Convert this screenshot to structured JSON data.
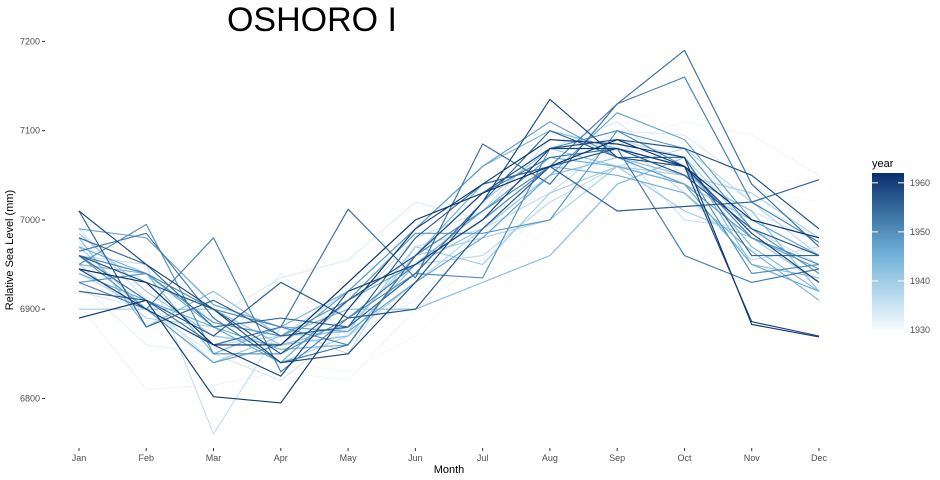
{
  "chart_data": {
    "type": "line",
    "title": "OSHORO I",
    "xlabel": "Month",
    "ylabel": "Relative Sea Level (mm)",
    "categories": [
      "Jan",
      "Feb",
      "Mar",
      "Apr",
      "May",
      "Jun",
      "Jul",
      "Aug",
      "Sep",
      "Oct",
      "Nov",
      "Dec"
    ],
    "ylim": [
      6740,
      7215
    ],
    "yticks": [
      6800,
      6900,
      7000,
      7100,
      7200
    ],
    "grid": false,
    "legend": {
      "title": "year",
      "position": "right",
      "type": "colorbar",
      "ticks": [
        1930,
        1940,
        1950,
        1960
      ],
      "range": [
        1930,
        1962
      ],
      "low_color": "#f7fbff",
      "high_color": "#08306b"
    },
    "series": [
      {
        "year": 1930,
        "values": [
          6895,
          6880,
          6850,
          6840,
          6830,
          6870,
          6940,
          6990,
          7040,
          7060,
          7035,
          7020
        ]
      },
      {
        "year": 1931,
        "values": [
          6905,
          6810,
          6815,
          6830,
          6820,
          6900,
          6955,
          7010,
          7085,
          7110,
          7095,
          7050
        ]
      },
      {
        "year": 1932,
        "values": [
          6930,
          6860,
          6850,
          6940,
          6870,
          6910,
          6980,
          7040,
          7080,
          7070,
          7020,
          6980
        ]
      },
      {
        "year": 1933,
        "values": [
          6975,
          6930,
          6890,
          6935,
          6955,
          7020,
          7000,
          7050,
          7100,
          7095,
          7040,
          6990
        ]
      },
      {
        "year": 1934,
        "values": [
          6920,
          6900,
          6850,
          6820,
          6880,
          6960,
          7030,
          7080,
          7110,
          7050,
          7010,
          6975
        ]
      },
      {
        "year": 1935,
        "values": [
          6990,
          6910,
          6840,
          6870,
          6900,
          6980,
          7010,
          7090,
          7080,
          7000,
          6990,
          6950
        ]
      },
      {
        "year": 1936,
        "values": [
          6960,
          6950,
          6760,
          6880,
          6850,
          6970,
          6990,
          7030,
          7090,
          7030,
          6955,
          6970
        ]
      },
      {
        "year": 1937,
        "values": [
          6940,
          6900,
          6860,
          6870,
          6920,
          6950,
          6960,
          7020,
          7060,
          7080,
          7020,
          6960
        ]
      },
      {
        "year": 1938,
        "values": [
          6950,
          6890,
          6880,
          6840,
          6870,
          6930,
          6990,
          7060,
          7090,
          7070,
          6990,
          6940
        ]
      },
      {
        "year": 1939,
        "values": [
          6900,
          6900,
          6860,
          6860,
          6880,
          6960,
          6980,
          7000,
          7060,
          7050,
          7030,
          6980
        ]
      },
      {
        "year": 1940,
        "values": [
          6970,
          6900,
          6840,
          6870,
          6875,
          6970,
          6950,
          7030,
          7060,
          7010,
          6980,
          6930
        ]
      },
      {
        "year": 1941,
        "values": [
          6985,
          6920,
          6870,
          6860,
          6880,
          6940,
          7020,
          7080,
          7060,
          7040,
          7000,
          6960
        ]
      },
      {
        "year": 1942,
        "values": [
          6960,
          6900,
          6900,
          6860,
          6870,
          6950,
          6990,
          7050,
          7070,
          7050,
          7010,
          6920
        ]
      },
      {
        "year": 1943,
        "values": [
          6980,
          6880,
          6920,
          6870,
          6900,
          6900,
          6930,
          6960,
          7040,
          7070,
          6950,
          6935
        ]
      },
      {
        "year": 1944,
        "values": [
          6950,
          6940,
          6850,
          6880,
          6920,
          6990,
          7060,
          7100,
          7080,
          7060,
          6970,
          6920
        ]
      },
      {
        "year": 1945,
        "values": [
          6970,
          6940,
          6880,
          6855,
          6860,
          6960,
          7040,
          7060,
          7050,
          7030,
          6965,
          6910
        ]
      },
      {
        "year": 1946,
        "values": [
          6940,
          6910,
          6880,
          6840,
          6910,
          6950,
          7010,
          7070,
          7060,
          7040,
          6950,
          6920
        ]
      },
      {
        "year": 1947,
        "values": [
          6990,
          6980,
          6905,
          6880,
          6875,
          6930,
          6980,
          7050,
          7120,
          7090,
          7000,
          6960
        ]
      },
      {
        "year": 1948,
        "values": [
          6960,
          6900,
          6840,
          6860,
          6920,
          6990,
          7060,
          7110,
          7070,
          7040,
          6980,
          6945
        ]
      },
      {
        "year": 1949,
        "values": [
          6930,
          6940,
          6885,
          6870,
          6910,
          6985,
          6985,
          7000,
          7100,
          7080,
          6990,
          6940
        ]
      },
      {
        "year": 1950,
        "values": [
          6950,
          6995,
          6850,
          6850,
          6890,
          6940,
          6935,
          7080,
          7100,
          7060,
          6940,
          6950
        ]
      },
      {
        "year": 1951,
        "values": [
          6960,
          6940,
          6900,
          6880,
          6860,
          6960,
          7010,
          7060,
          7080,
          7060,
          6980,
          6950
        ]
      },
      {
        "year": 1952,
        "values": [
          6930,
          6900,
          6980,
          6830,
          6890,
          6950,
          7000,
          7060,
          7130,
          7160,
          7020,
          6975
        ]
      },
      {
        "year": 1953,
        "values": [
          6965,
          6985,
          6890,
          6840,
          6860,
          6960,
          7030,
          7070,
          7080,
          6960,
          6930,
          6945
        ]
      },
      {
        "year": 1954,
        "values": [
          6960,
          6910,
          6860,
          6880,
          7012,
          6935,
          7085,
          7040,
          7130,
          7190,
          7040,
          6970
        ]
      },
      {
        "year": 1955,
        "values": [
          6980,
          6950,
          6880,
          6890,
          6880,
          6940,
          7020,
          7100,
          7070,
          7070,
          6960,
          6960
        ]
      },
      {
        "year": 1956,
        "values": [
          7010,
          6880,
          6910,
          6870,
          6880,
          6980,
          7040,
          7060,
          7010,
          7015,
          7020,
          7045
        ]
      },
      {
        "year": 1957,
        "values": [
          6920,
          6910,
          6870,
          6930,
          6890,
          6900,
          6990,
          7060,
          7080,
          7050,
          6990,
          6960
        ]
      },
      {
        "year": 1958,
        "values": [
          6960,
          6930,
          6900,
          6850,
          6910,
          6960,
          7030,
          7080,
          7090,
          7080,
          7050,
          6990
        ]
      },
      {
        "year": 1959,
        "values": [
          7010,
          6950,
          6900,
          6840,
          6850,
          6930,
          7020,
          7135,
          7070,
          7060,
          6886,
          6870
        ]
      },
      {
        "year": 1960,
        "values": [
          6945,
          6900,
          6860,
          6825,
          6920,
          6950,
          7000,
          7080,
          7080,
          7060,
          6985,
          6930
        ]
      },
      {
        "year": 1961,
        "values": [
          6890,
          6910,
          6802,
          6795,
          6900,
          6990,
          7040,
          7090,
          7085,
          7070,
          6883,
          6869
        ]
      },
      {
        "year": 1962,
        "values": [
          6945,
          6930,
          6860,
          6860,
          6930,
          7000,
          7030,
          7060,
          7090,
          7060,
          7000,
          6980
        ]
      }
    ]
  }
}
